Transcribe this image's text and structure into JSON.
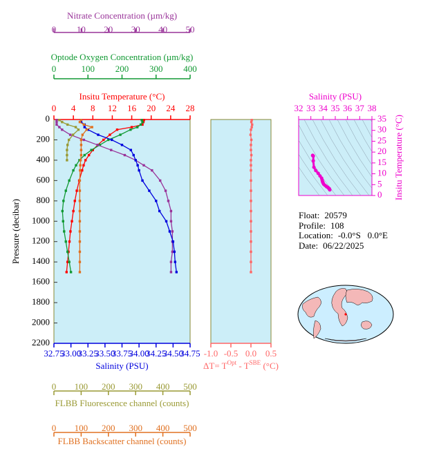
{
  "chart_data": [
    {
      "type": "profile",
      "ylabel": "Pressure (decibar)",
      "pressure": [
        5,
        25,
        50,
        75,
        100,
        150,
        200,
        250,
        300,
        350,
        400,
        450,
        500,
        600,
        700,
        800,
        900,
        1000,
        1100,
        1200,
        1300,
        1400,
        1500
      ],
      "ylim": [
        0,
        2200
      ],
      "yticks": [
        0,
        200,
        400,
        600,
        800,
        1000,
        1200,
        1400,
        1600,
        1800,
        2000,
        2200
      ],
      "top_axes": [
        {
          "label": "Insitu Temperature (°C)",
          "color": "#ff0000",
          "xlim": [
            0,
            28
          ],
          "xticks": [
            0,
            4,
            8,
            12,
            16,
            20,
            24,
            28
          ],
          "values": [
            18.5,
            18.4,
            18.2,
            16,
            13,
            11.5,
            10.2,
            9,
            8,
            7.2,
            6.5,
            6.1,
            5.8,
            5.2,
            4.7,
            4.3,
            4.0,
            3.7,
            3.4,
            3.2,
            3.0,
            2.8,
            2.6
          ]
        },
        {
          "label": "Optode Oxygen Concentration (µm/kg)",
          "color": "#119933",
          "xlim": [
            0,
            400
          ],
          "xticks": [
            0,
            100,
            200,
            300,
            400
          ],
          "values": [
            258,
            260,
            255,
            245,
            225,
            195,
            160,
            135,
            110,
            90,
            75,
            65,
            57,
            45,
            35,
            28,
            25,
            27,
            30,
            35,
            40,
            45,
            50
          ]
        },
        {
          "label": "Nitrate Concentration (µm/kg)",
          "color": "#993399",
          "xlim": [
            0,
            50
          ],
          "xticks": [
            0,
            10,
            20,
            30,
            40,
            50
          ],
          "values": [
            1,
            1,
            1,
            2,
            3,
            6,
            11,
            16,
            21,
            26,
            30,
            33,
            36,
            39,
            41,
            42,
            43,
            43,
            43.5,
            43.5,
            43.5,
            43,
            43
          ]
        }
      ],
      "bottom_axes": [
        {
          "label": "Salinity (PSU)",
          "color": "#0000dd",
          "xlim": [
            32.75,
            34.75
          ],
          "xticks": [
            32.75,
            {
              "value": 33,
              "label": "33.00"
            },
            33.25,
            {
              "value": 33.5,
              "label": "33.50"
            },
            33.75,
            {
              "value": 34,
              "label": "34.00"
            },
            34.25,
            {
              "value": 34.5,
              "label": "34.50"
            },
            34.75
          ],
          "values": [
            33.15,
            33.15,
            33.2,
            33.2,
            33.25,
            33.4,
            33.6,
            33.75,
            33.88,
            33.92,
            33.95,
            33.98,
            34.0,
            34.05,
            34.15,
            34.25,
            34.3,
            34.4,
            34.45,
            34.5,
            34.52,
            34.53,
            34.55
          ]
        },
        {
          "label": "FLBB Fluorescence channel (counts)",
          "color": "#999933",
          "xlim": [
            0,
            500
          ],
          "xticks": [
            0,
            100,
            200,
            300,
            400,
            500
          ],
          "values": [
            20,
            30,
            50,
            80,
            90,
            70,
            55,
            50,
            48,
            48,
            48,
            null,
            null,
            null,
            null,
            null,
            null,
            null,
            null,
            null,
            null,
            null,
            null
          ]
        },
        {
          "label": "FLBB Backscatter channel (counts)",
          "color": "#e07020",
          "xlim": [
            0,
            500
          ],
          "xticks": [
            0,
            100,
            200,
            300,
            400,
            500
          ],
          "values": [
            100,
            95,
            110,
            140,
            120,
            105,
            100,
            100,
            100,
            100,
            98,
            97,
            96,
            95,
            95,
            95,
            95,
            95,
            95,
            95,
            95,
            95,
            95
          ]
        }
      ]
    },
    {
      "type": "profile",
      "ylim": [
        0,
        2200
      ],
      "bottom_axes": [
        {
          "label": [
            "ΔT= T",
            "Opt",
            " - T",
            "SBE",
            " (°C)"
          ],
          "color": "#ff6666",
          "xlim": [
            -1,
            0.5
          ],
          "xticks": [
            {
              "value": -1,
              "label": "-1.0"
            },
            {
              "value": -0.5,
              "label": "-0.5"
            },
            {
              "value": 0,
              "label": "0.0"
            },
            0.5
          ],
          "values": [
            0.02,
            0.01,
            0.03,
            0.02,
            0.0,
            -0.01,
            0.01,
            0.0,
            0.0,
            0.01,
            0.0,
            0.0,
            0.0,
            0.0,
            0.0,
            0.0,
            0.0,
            0.0,
            0.0,
            0.0,
            0.0,
            0.0,
            0.0
          ]
        }
      ]
    },
    {
      "type": "ts",
      "xlabel": "Salinity (PSU)",
      "ylabel": "Insitu Temperature (°C)",
      "color": "#ee00cc",
      "xlim": [
        32,
        38
      ],
      "xticks": [
        32,
        33,
        34,
        35,
        36,
        37,
        38
      ],
      "ylim": [
        0,
        35
      ],
      "yticks": [
        0,
        5,
        10,
        15,
        20,
        25,
        30,
        35
      ]
    }
  ],
  "info": [
    {
      "label": "Float:",
      "value": "20579"
    },
    {
      "label": "Profile:",
      "value": "108"
    },
    {
      "label": "Location:",
      "value": "-0.0°S   0.0°E"
    },
    {
      "label": "Date:",
      "value": "06/22/2025"
    }
  ]
}
